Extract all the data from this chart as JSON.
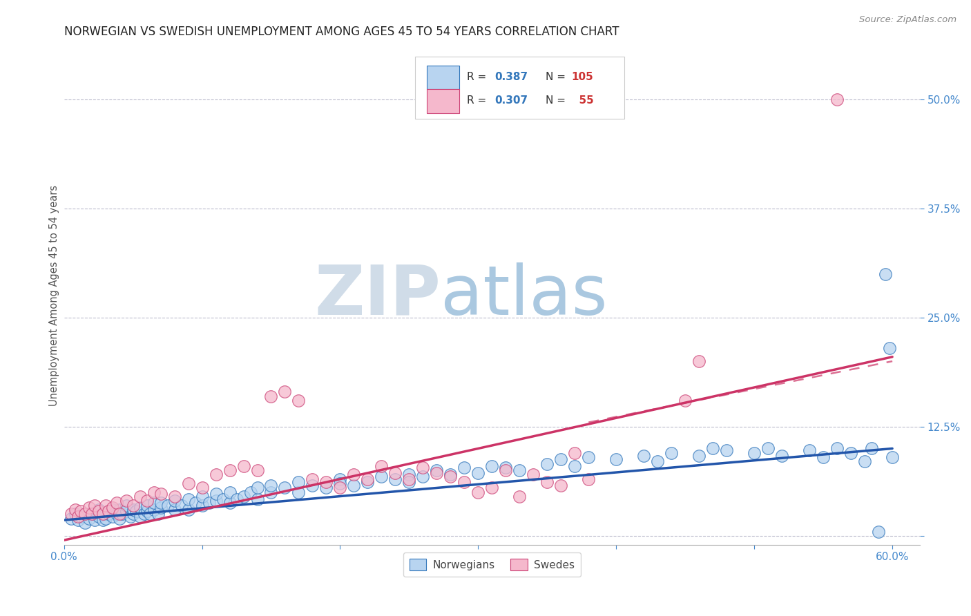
{
  "title": "NORWEGIAN VS SWEDISH UNEMPLOYMENT AMONG AGES 45 TO 54 YEARS CORRELATION CHART",
  "source": "Source: ZipAtlas.com",
  "ylabel": "Unemployment Among Ages 45 to 54 years",
  "xlim": [
    0.0,
    0.62
  ],
  "ylim": [
    -0.01,
    0.56
  ],
  "yticks": [
    0.0,
    0.125,
    0.25,
    0.375,
    0.5
  ],
  "ytick_labels": [
    "",
    "12.5%",
    "25.0%",
    "37.5%",
    "50.0%"
  ],
  "xticks": [
    0.0,
    0.1,
    0.2,
    0.3,
    0.4,
    0.5,
    0.6
  ],
  "xtick_labels": [
    "0.0%",
    "",
    "",
    "",
    "",
    "",
    "60.0%"
  ],
  "grid_color": "#bbbbcc",
  "background_color": "#ffffff",
  "blue_fill": "#b8d4f0",
  "blue_edge": "#3377bb",
  "pink_fill": "#f5b8cc",
  "pink_edge": "#cc4477",
  "blue_trend_color": "#2255aa",
  "pink_trend_color": "#cc3366",
  "axis_color": "#4488cc",
  "title_color": "#222222",
  "source_color": "#888888",
  "watermark_ZIP_color": "#d0dce8",
  "watermark_atlas_color": "#aac8e0",
  "norwegians_label": "Norwegians",
  "swedes_label": "Swedes",
  "legend_text_color": "#333333",
  "legend_val_color": "#3377bb",
  "legend_n_color": "#cc3333",
  "nor_x": [
    0.005,
    0.008,
    0.01,
    0.012,
    0.015,
    0.015,
    0.018,
    0.02,
    0.022,
    0.025,
    0.025,
    0.028,
    0.03,
    0.03,
    0.032,
    0.035,
    0.035,
    0.038,
    0.04,
    0.04,
    0.042,
    0.045,
    0.045,
    0.048,
    0.05,
    0.05,
    0.052,
    0.055,
    0.055,
    0.058,
    0.06,
    0.06,
    0.062,
    0.065,
    0.065,
    0.068,
    0.07,
    0.07,
    0.075,
    0.08,
    0.08,
    0.085,
    0.09,
    0.09,
    0.095,
    0.1,
    0.1,
    0.105,
    0.11,
    0.11,
    0.115,
    0.12,
    0.12,
    0.125,
    0.13,
    0.135,
    0.14,
    0.14,
    0.15,
    0.15,
    0.16,
    0.17,
    0.17,
    0.18,
    0.19,
    0.2,
    0.2,
    0.21,
    0.22,
    0.23,
    0.24,
    0.25,
    0.25,
    0.26,
    0.27,
    0.28,
    0.29,
    0.3,
    0.31,
    0.32,
    0.33,
    0.35,
    0.36,
    0.37,
    0.38,
    0.4,
    0.42,
    0.43,
    0.44,
    0.46,
    0.47,
    0.48,
    0.5,
    0.51,
    0.52,
    0.54,
    0.55,
    0.56,
    0.57,
    0.58,
    0.585,
    0.59,
    0.595,
    0.598,
    0.6
  ],
  "nor_y": [
    0.02,
    0.025,
    0.018,
    0.022,
    0.025,
    0.015,
    0.02,
    0.025,
    0.018,
    0.022,
    0.03,
    0.018,
    0.025,
    0.02,
    0.025,
    0.022,
    0.03,
    0.025,
    0.02,
    0.03,
    0.025,
    0.028,
    0.035,
    0.022,
    0.025,
    0.03,
    0.028,
    0.022,
    0.032,
    0.025,
    0.028,
    0.035,
    0.025,
    0.03,
    0.038,
    0.025,
    0.032,
    0.038,
    0.035,
    0.03,
    0.04,
    0.035,
    0.03,
    0.042,
    0.038,
    0.035,
    0.045,
    0.038,
    0.04,
    0.048,
    0.042,
    0.038,
    0.05,
    0.042,
    0.045,
    0.05,
    0.042,
    0.055,
    0.05,
    0.058,
    0.055,
    0.05,
    0.062,
    0.058,
    0.055,
    0.065,
    0.06,
    0.058,
    0.062,
    0.068,
    0.065,
    0.07,
    0.062,
    0.068,
    0.075,
    0.07,
    0.078,
    0.072,
    0.08,
    0.078,
    0.075,
    0.082,
    0.088,
    0.08,
    0.09,
    0.088,
    0.092,
    0.085,
    0.095,
    0.092,
    0.1,
    0.098,
    0.095,
    0.1,
    0.092,
    0.098,
    0.09,
    0.1,
    0.095,
    0.085,
    0.1,
    0.005,
    0.3,
    0.215,
    0.09
  ],
  "swe_x": [
    0.005,
    0.008,
    0.01,
    0.012,
    0.015,
    0.018,
    0.02,
    0.022,
    0.025,
    0.028,
    0.03,
    0.032,
    0.035,
    0.038,
    0.04,
    0.045,
    0.05,
    0.055,
    0.06,
    0.065,
    0.07,
    0.08,
    0.09,
    0.1,
    0.11,
    0.12,
    0.13,
    0.14,
    0.15,
    0.16,
    0.17,
    0.18,
    0.19,
    0.2,
    0.21,
    0.22,
    0.23,
    0.24,
    0.25,
    0.26,
    0.27,
    0.28,
    0.29,
    0.3,
    0.31,
    0.32,
    0.33,
    0.34,
    0.35,
    0.36,
    0.37,
    0.38,
    0.45,
    0.46,
    0.56
  ],
  "swe_y": [
    0.025,
    0.03,
    0.022,
    0.028,
    0.025,
    0.032,
    0.025,
    0.035,
    0.028,
    0.025,
    0.035,
    0.028,
    0.032,
    0.038,
    0.025,
    0.04,
    0.035,
    0.045,
    0.04,
    0.05,
    0.048,
    0.045,
    0.06,
    0.055,
    0.07,
    0.075,
    0.08,
    0.075,
    0.16,
    0.165,
    0.155,
    0.065,
    0.062,
    0.055,
    0.07,
    0.065,
    0.08,
    0.072,
    0.065,
    0.078,
    0.072,
    0.068,
    0.062,
    0.05,
    0.055,
    0.075,
    0.045,
    0.07,
    0.062,
    0.058,
    0.095,
    0.065,
    0.155,
    0.2,
    0.5
  ],
  "blue_trend": [
    0.0,
    0.018,
    0.6,
    0.1
  ],
  "pink_trend_solid": [
    0.0,
    -0.005,
    0.6,
    0.205
  ],
  "pink_trend_dash": [
    0.38,
    0.13,
    0.6,
    0.2
  ]
}
